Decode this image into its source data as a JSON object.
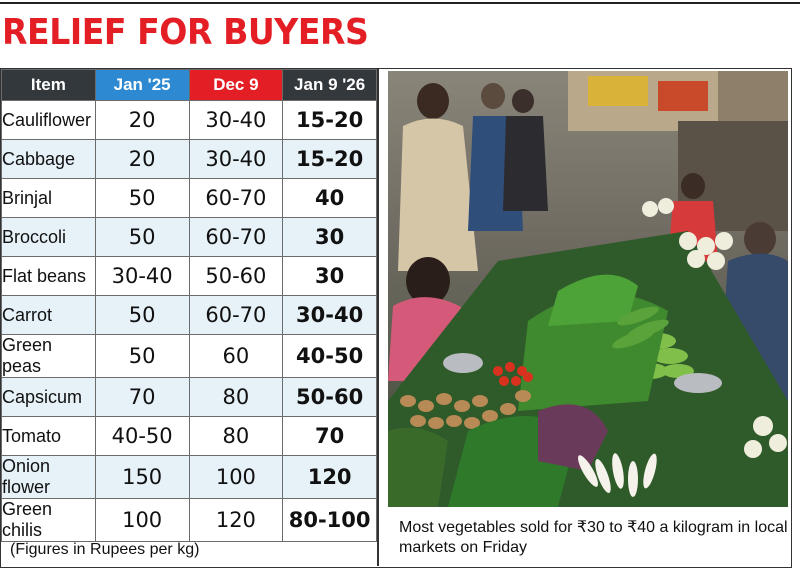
{
  "headline": "RELIEF FOR BUYERS",
  "table": {
    "headers": [
      "Item",
      "Jan '25",
      "Dec 9",
      "Jan 9 '26"
    ],
    "rows": [
      {
        "item": "Cauliflower",
        "jan25": "20",
        "dec9": "30-40",
        "jan26": "15-20"
      },
      {
        "item": "Cabbage",
        "jan25": "20",
        "dec9": "30-40",
        "jan26": "15-20"
      },
      {
        "item": "Brinjal",
        "jan25": "50",
        "dec9": "60-70",
        "jan26": "40"
      },
      {
        "item": "Broccoli",
        "jan25": "50",
        "dec9": "60-70",
        "jan26": "30"
      },
      {
        "item": "Flat beans",
        "jan25": "30-40",
        "dec9": "50-60",
        "jan26": "30"
      },
      {
        "item": "Carrot",
        "jan25": "50",
        "dec9": "60-70",
        "jan26": "30-40"
      },
      {
        "item": "Green peas",
        "jan25": "50",
        "dec9": "60",
        "jan26": "40-50"
      },
      {
        "item": "Capsicum",
        "jan25": "70",
        "dec9": "80",
        "jan26": "50-60"
      },
      {
        "item": "Tomato",
        "jan25": "40-50",
        "dec9": "80",
        "jan26": "70"
      },
      {
        "item": "Onion flower",
        "jan25": "150",
        "dec9": "100",
        "jan26": "120"
      },
      {
        "item": "Green chilis",
        "jan25": "100",
        "dec9": "120",
        "jan26": "80-100"
      }
    ],
    "note": "(Figures in Rupees per kg)"
  },
  "photo": {
    "caption": "Most vegetables sold for ₹30 to ₹40 a kilogram in local markets on Friday"
  },
  "colors": {
    "headline": "#e31e24",
    "header_dark": "#33383d",
    "header_blue": "#2d8ad2",
    "header_red": "#e31e24",
    "row_alt": "#e6f1f8"
  }
}
